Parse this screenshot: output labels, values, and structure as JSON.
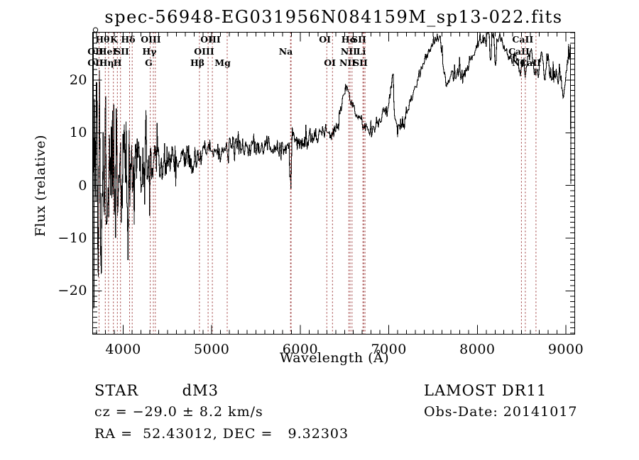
{
  "title": "spec-56948-EG031956N084159M_sp13-022.fits",
  "colors": {
    "background": "#ffffff",
    "spectrum": "#000000",
    "line_marker": "#993333",
    "frame": "#000000",
    "text": "#000000"
  },
  "axes": {
    "x": {
      "label": "Wavelength (Å)",
      "min": 3655,
      "max": 9100,
      "major_ticks": [
        4000,
        5000,
        6000,
        7000,
        8000,
        9000
      ],
      "major_tick_labels": [
        "4000",
        "5000",
        "6000",
        "7000",
        "8000",
        "9000"
      ],
      "minor_step": 100
    },
    "y": {
      "label": "Flux (relative)",
      "min": -28.2,
      "max": 29.05,
      "major_ticks": [
        -20,
        -10,
        0,
        10,
        20
      ],
      "major_tick_labels": [
        "−20",
        "−10",
        "0",
        "10",
        "20"
      ],
      "minor_step": 1
    }
  },
  "chart_data": {
    "type": "line",
    "title": "spec-56948-EG031956N084159M_sp13-022.fits",
    "xlabel": "Wavelength (Å)",
    "ylabel": "Flux (relative)",
    "xlim": [
      3655,
      9100
    ],
    "ylim": [
      -28.2,
      29.05
    ],
    "grid": false,
    "legend": "none",
    "series": [
      {
        "name": "observed-spectrum",
        "style": "jagged-noisy-line",
        "continuum_wavelength": [
          3655,
          3700,
          3760,
          3820,
          3880,
          3940,
          4000,
          4060,
          4120,
          4200,
          4280,
          4360,
          4440,
          4520,
          4600,
          4700,
          4800,
          4861,
          4920,
          5000,
          5080,
          5160,
          5210,
          5260,
          5320,
          5400,
          5480,
          5560,
          5640,
          5720,
          5800,
          5860,
          5878,
          5886,
          5892,
          5897,
          5903,
          5908,
          5912,
          5918,
          5940,
          5980,
          6040,
          6100,
          6160,
          6220,
          6290,
          6320,
          6360,
          6400,
          6440,
          6480,
          6515,
          6545,
          6580,
          6620,
          6660,
          6700,
          6740,
          6780,
          6820,
          6860,
          6900,
          6940,
          6980,
          7010,
          7030,
          7042,
          7046,
          7051,
          7058,
          7075,
          7100,
          7118,
          7138,
          7170,
          7205,
          7240,
          7275,
          7310,
          7345,
          7380,
          7415,
          7450,
          7485,
          7520,
          7556,
          7580,
          7598,
          7618,
          7645,
          7668,
          7690,
          7712,
          7734,
          7756,
          7778,
          7794,
          7797,
          7801,
          7806,
          7820,
          7845,
          7870,
          7895,
          7925,
          7955,
          7985,
          8020,
          8060,
          8100,
          8132,
          8146,
          8152,
          8160,
          8185,
          8200,
          8210,
          8220,
          8245,
          8275,
          8305,
          8335,
          8365,
          8395,
          8425,
          8455,
          8472,
          8486,
          8505,
          8522,
          8540,
          8558,
          8580,
          8612,
          8638,
          8658,
          8680,
          8700,
          8732,
          8750,
          8766,
          8788,
          8804,
          8820,
          8844,
          8860,
          8876,
          8894,
          8914,
          8934,
          8954,
          8970,
          8990,
          9008,
          9024,
          9032,
          9040,
          9048,
          9053,
          9056
        ],
        "continuum_flux": [
          0.5,
          0.5,
          0.8,
          1.2,
          1.8,
          2.3,
          2.8,
          3.2,
          3.5,
          4.0,
          4.2,
          4.5,
          4.8,
          5.0,
          5.2,
          5.4,
          5.5,
          5.9,
          5.8,
          6.0,
          6.2,
          6.4,
          7.6,
          7.7,
          7.4,
          7.1,
          7.0,
          7.1,
          7.3,
          7.3,
          7.2,
          7.0,
          6.2,
          0.0,
          -2.3,
          -1.8,
          4.0,
          9.0,
          14.3,
          8.5,
          7.6,
          8.0,
          8.5,
          8.9,
          9.4,
          9.9,
          10.3,
          9.5,
          9.9,
          11.0,
          13.0,
          16.2,
          18.7,
          17.6,
          15.8,
          14.0,
          12.8,
          11.8,
          11.1,
          10.6,
          10.5,
          11.0,
          12.0,
          13.2,
          15.0,
          16.8,
          19.0,
          21.5,
          27.3,
          20.0,
          15.2,
          12.8,
          11.2,
          10.4,
          10.9,
          12.0,
          13.8,
          15.8,
          17.6,
          19.3,
          21.0,
          22.6,
          24.0,
          25.3,
          26.5,
          27.6,
          28.3,
          28.0,
          25.5,
          21.5,
          19.8,
          19.6,
          20.8,
          21.3,
          20.8,
          21.2,
          20.9,
          21.7,
          22.5,
          27.4,
          21.8,
          19.8,
          20.6,
          21.6,
          22.6,
          23.6,
          24.6,
          25.8,
          27.0,
          28.0,
          28.3,
          28.5,
          24.5,
          23.8,
          28.0,
          28.4,
          23.5,
          22.8,
          27.5,
          27.9,
          27.4,
          26.3,
          25.2,
          24.0,
          23.6,
          24.6,
          23.6,
          22.4,
          21.2,
          23.2,
          24.0,
          20.9,
          23.2,
          24.6,
          24.9,
          22.8,
          20.3,
          21.3,
          21.8,
          24.9,
          22.4,
          20.1,
          25.4,
          23.3,
          21.5,
          19.8,
          23.0,
          19.3,
          22.4,
          18.7,
          21.6,
          18.4,
          17.6,
          19.6,
          21.2,
          24.0,
          28.2,
          23.0,
          26.3,
          27.8,
          0.3
        ],
        "noise_wavelength": [
          3655,
          3700,
          3755,
          3810,
          3865,
          3920,
          3975,
          4030,
          4085,
          4140,
          4200,
          4270,
          4340,
          4420,
          4500,
          4600,
          4750,
          4900,
          5050,
          5200,
          5400,
          5600,
          5800,
          5890,
          6000,
          6200,
          6400,
          6520,
          6700,
          6900,
          7100,
          7300,
          7500,
          7600,
          7700,
          7850,
          8000,
          8140,
          8300,
          8500,
          8700,
          8900,
          9056
        ],
        "noise_amplitude": [
          26,
          25,
          22,
          19,
          16,
          13.5,
          11.5,
          9.5,
          8,
          7,
          6,
          5,
          4.5,
          4,
          3.2,
          2.8,
          2.4,
          2.2,
          2.0,
          1.8,
          1.6,
          1.4,
          1.3,
          2.2,
          1.4,
          1.4,
          1.3,
          1.0,
          1.0,
          1.0,
          1.1,
          0.8,
          0.6,
          1.0,
          1.0,
          1.0,
          0.8,
          1.2,
          0.9,
          1.1,
          1.4,
          1.5,
          1.1
        ],
        "noise_seed": 20141017,
        "sample_step_angstrom": 7
      }
    ],
    "clipped_point_marker": {
      "wavelength": 3687,
      "flux": 29.5,
      "shape": "circle"
    },
    "spectral_lines": [
      {
        "label": "OII",
        "wavelength": 3727
      },
      {
        "label": "Hθ",
        "wavelength": 3798
      },
      {
        "label": "Hη",
        "wavelength": 3835
      },
      {
        "label": "HeI",
        "wavelength": 3889
      },
      {
        "label": "K",
        "wavelength": 3934
      },
      {
        "label": "H",
        "wavelength": 3969
      },
      {
        "label": "SII",
        "wavelength": 4072
      },
      {
        "label": "Hδ",
        "wavelength": 4102
      },
      {
        "label": "G",
        "wavelength": 4305
      },
      {
        "label": "Hγ",
        "wavelength": 4341
      },
      {
        "label": "OIII",
        "wavelength": 4363
      },
      {
        "label": "Hβ",
        "wavelength": 4861
      },
      {
        "label": "OIII",
        "wavelength": 4959
      },
      {
        "label": "OIII",
        "wavelength": 5007
      },
      {
        "label": "Mg",
        "wavelength": 5175
      },
      {
        "label": "Na",
        "wavelength": 5890
      },
      {
        "label": "Na",
        "wavelength": 5896
      },
      {
        "label": "OI",
        "wavelength": 6300
      },
      {
        "label": "OI",
        "wavelength": 6364
      },
      {
        "label": "NII",
        "wavelength": 6548
      },
      {
        "label": "Hα",
        "wavelength": 6563
      },
      {
        "label": "NII",
        "wavelength": 6584
      },
      {
        "label": "Li",
        "wavelength": 6708
      },
      {
        "label": "SII",
        "wavelength": 6716
      },
      {
        "label": "SII",
        "wavelength": 6731
      },
      {
        "label": "CaII",
        "wavelength": 8498
      },
      {
        "label": "CaII",
        "wavelength": 8542
      },
      {
        "label": "CaII",
        "wavelength": 8662
      }
    ],
    "line_labels": [
      {
        "text": "Hθ",
        "row": 1,
        "wavelength": 3767
      },
      {
        "text": "K",
        "row": 1,
        "wavelength": 3896
      },
      {
        "text": "Hδ",
        "row": 1,
        "wavelength": 4056
      },
      {
        "text": "OIII",
        "row": 1,
        "wavelength": 4312
      },
      {
        "text": "OIII",
        "row": 1,
        "wavelength": 4986
      },
      {
        "text": "OI",
        "row": 1,
        "wavelength": 6278
      },
      {
        "text": "Hα",
        "row": 1,
        "wavelength": 6550
      },
      {
        "text": "SII",
        "row": 1,
        "wavelength": 6662
      },
      {
        "text": "CaII",
        "row": 1,
        "wavelength": 8513
      },
      {
        "text": "OII",
        "row": 2,
        "wavelength": 3687
      },
      {
        "text": "HeI",
        "row": 2,
        "wavelength": 3824
      },
      {
        "text": "SII",
        "row": 2,
        "wavelength": 3984
      },
      {
        "text": "Hγ",
        "row": 2,
        "wavelength": 4296
      },
      {
        "text": "OIII",
        "row": 2,
        "wavelength": 4914
      },
      {
        "text": "Na",
        "row": 2,
        "wavelength": 5836
      },
      {
        "text": "NII",
        "row": 2,
        "wavelength": 6549
      },
      {
        "text": "Li",
        "row": 2,
        "wavelength": 6686
      },
      {
        "text": "CaII",
        "row": 2,
        "wavelength": 8470
      },
      {
        "text": "OII",
        "row": 3,
        "wavelength": 3687
      },
      {
        "text": "Hη",
        "row": 3,
        "wavelength": 3812
      },
      {
        "text": "H",
        "row": 3,
        "wavelength": 3936
      },
      {
        "text": "G",
        "row": 3,
        "wavelength": 4288
      },
      {
        "text": "Hβ",
        "row": 3,
        "wavelength": 4838
      },
      {
        "text": "Mg",
        "row": 3,
        "wavelength": 5123
      },
      {
        "text": "OI",
        "row": 3,
        "wavelength": 6334
      },
      {
        "text": "NII",
        "row": 3,
        "wavelength": 6534
      },
      {
        "text": "SII",
        "row": 3,
        "wavelength": 6678
      },
      {
        "text": "NI",
        "row": 3,
        "wavelength": 8462
      },
      {
        "text": "CaII",
        "row": 3,
        "wavelength": 8600
      }
    ]
  },
  "footer": {
    "class_line": "STAR        dM3",
    "survey_line": "LAMOST DR11",
    "cz_line": "cz = −29.0 ± 8.2 km/s",
    "obsdate_line": "Obs-Date: 20141017",
    "radec_line": "RA =  52.43012, DEC =   9.32303"
  }
}
